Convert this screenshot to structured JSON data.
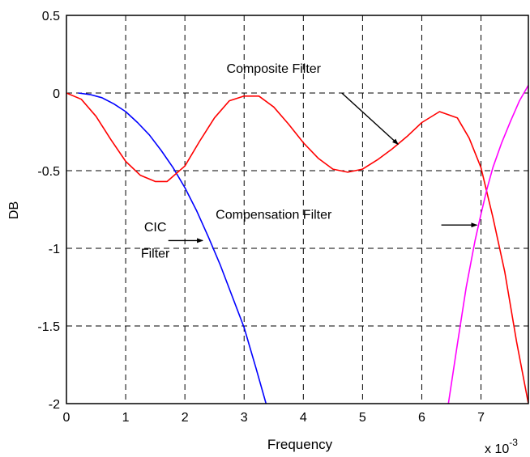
{
  "chart_data": {
    "type": "line",
    "title": "",
    "xlabel": "Frequency",
    "ylabel": "DB",
    "x_exponent_label": "x 10",
    "x_exponent_power": "-3",
    "xlim": [
      0,
      7.8
    ],
    "ylim": [
      -2,
      0.5
    ],
    "x_ticks": [
      0,
      1,
      2,
      3,
      4,
      5,
      6,
      7
    ],
    "x_tick_labels": [
      "0",
      "1",
      "2",
      "3",
      "4",
      "5",
      "6",
      "7"
    ],
    "y_ticks": [
      0.5,
      0,
      -0.5,
      -1,
      -1.5,
      -2
    ],
    "y_tick_labels": [
      "0.5",
      "0",
      "-0.5",
      "-1",
      "-1.5",
      "-2"
    ],
    "grid": true,
    "series": [
      {
        "name": "CIC Filter",
        "color": "#0000ff",
        "x": [
          0.2,
          0.4,
          0.6,
          0.8,
          1.0,
          1.2,
          1.4,
          1.6,
          1.8,
          2.0,
          2.2,
          2.4,
          2.6,
          2.8,
          3.0,
          3.2,
          3.37
        ],
        "y": [
          0.0,
          -0.01,
          -0.03,
          -0.07,
          -0.12,
          -0.19,
          -0.27,
          -0.37,
          -0.48,
          -0.61,
          -0.76,
          -0.93,
          -1.11,
          -1.31,
          -1.51,
          -1.77,
          -2.0
        ]
      },
      {
        "name": "Composite Filter",
        "color": "#ff0000",
        "x": [
          0.0,
          0.25,
          0.5,
          0.75,
          1.0,
          1.25,
          1.5,
          1.7,
          2.0,
          2.25,
          2.5,
          2.75,
          3.0,
          3.25,
          3.5,
          3.75,
          4.0,
          4.25,
          4.5,
          4.75,
          5.0,
          5.25,
          5.5,
          5.75,
          6.0,
          6.3,
          6.6,
          6.8,
          7.0,
          7.2,
          7.4,
          7.6,
          7.8
        ],
        "y": [
          0.0,
          -0.04,
          -0.15,
          -0.3,
          -0.44,
          -0.53,
          -0.57,
          -0.57,
          -0.47,
          -0.31,
          -0.16,
          -0.05,
          -0.02,
          -0.02,
          -0.09,
          -0.2,
          -0.32,
          -0.42,
          -0.49,
          -0.51,
          -0.49,
          -0.43,
          -0.36,
          -0.28,
          -0.19,
          -0.12,
          -0.16,
          -0.29,
          -0.48,
          -0.8,
          -1.15,
          -1.6,
          -2.0
        ]
      },
      {
        "name": "Compensation Filter",
        "color": "#ff00ff",
        "x": [
          6.45,
          6.6,
          6.75,
          6.9,
          7.0,
          7.1,
          7.2,
          7.35,
          7.5,
          7.65,
          7.8
        ],
        "y": [
          -2.0,
          -1.62,
          -1.25,
          -0.95,
          -0.78,
          -0.62,
          -0.48,
          -0.32,
          -0.18,
          -0.05,
          0.05
        ]
      }
    ],
    "annotations": [
      {
        "id": "composite",
        "text": "Composite Filter",
        "x": 3.5,
        "y": 0.13,
        "arrow_from": [
          4.65,
          0.0
        ],
        "arrow_to": [
          5.6,
          -0.33
        ]
      },
      {
        "id": "compensation",
        "text": "Compensation Filter",
        "x": 3.5,
        "y": -0.81,
        "arrow_from": [
          6.33,
          -0.85
        ],
        "arrow_to": [
          6.93,
          -0.85
        ]
      },
      {
        "id": "cic-line1",
        "text": "CIC",
        "x": 1.5,
        "y": -0.89
      },
      {
        "id": "cic-line2",
        "text": "Filter",
        "x": 1.5,
        "y": -1.06,
        "arrow_from": [
          1.72,
          -0.95
        ],
        "arrow_to": [
          2.3,
          -0.95
        ]
      }
    ]
  }
}
